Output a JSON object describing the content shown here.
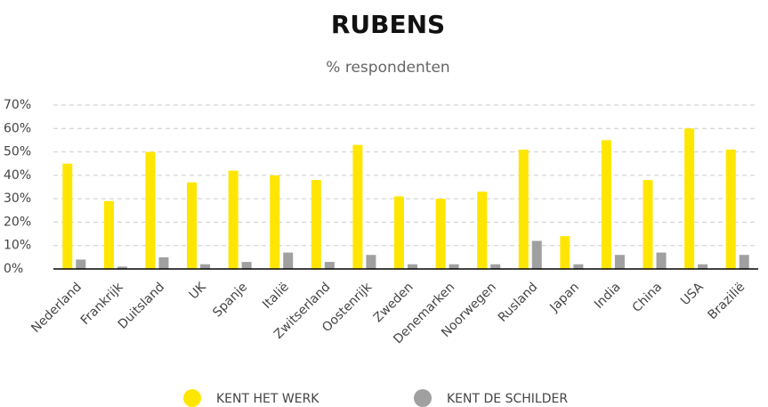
{
  "chart_data": {
    "type": "bar",
    "title": "RUBENS",
    "subtitle": "% respondenten",
    "categories": [
      "Nederland",
      "Frankrijk",
      "Duitsland",
      "UK",
      "Spanje",
      "Italië",
      "Zwitserland",
      "Oostenrijk",
      "Zweden",
      "Denemarken",
      "Noorwegen",
      "Rusland",
      "Japan",
      "India",
      "China",
      "USA",
      "Brazilië"
    ],
    "series": [
      {
        "name": "KENT HET WERK",
        "color": "#ffe600",
        "values": [
          45,
          29,
          50,
          37,
          42,
          40,
          38,
          53,
          31,
          30,
          33,
          51,
          14,
          55,
          38,
          60,
          51
        ]
      },
      {
        "name": "KENT DE SCHILDER",
        "color": "#a0a0a0",
        "values": [
          4,
          1,
          5,
          2,
          3,
          7,
          3,
          6,
          2,
          2,
          2,
          12,
          2,
          6,
          7,
          2,
          6
        ]
      }
    ],
    "ylim": [
      0,
      70
    ],
    "yticks": [
      {
        "value": 0,
        "label": "0%"
      },
      {
        "value": 10,
        "label": "10%"
      },
      {
        "value": 20,
        "label": "20%"
      },
      {
        "value": 30,
        "label": "30%"
      },
      {
        "value": 40,
        "label": "40%"
      },
      {
        "value": 50,
        "label": "50%"
      },
      {
        "value": 60,
        "label": "60%"
      },
      {
        "value": 70,
        "label": "70%"
      }
    ],
    "grid": true,
    "legend": "bottom"
  }
}
